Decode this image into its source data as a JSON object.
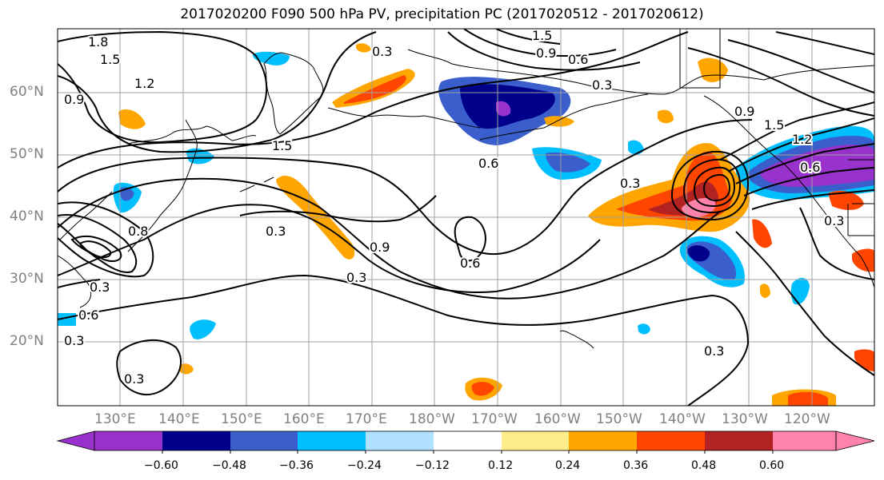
{
  "title": "2017020200 F090 500 hPa PV, precipitation PC (2017020512 - 2017020612)",
  "lat_labels": [
    "60°N",
    "50°N",
    "40°N",
    "30°N",
    "20°N"
  ],
  "lon_labels": [
    "130°E",
    "140°E",
    "150°E",
    "160°E",
    "170°E",
    "180°W",
    "170°W",
    "160°W",
    "150°W",
    "140°W",
    "130°W",
    "120°W"
  ],
  "contour_labels": [
    "1.8",
    "1.5",
    "1.2",
    "0.9",
    "0.3",
    "1.5",
    "0.9",
    "0.6",
    "0.3",
    "0.9",
    "1.5",
    "1.2",
    "0.6",
    "0.6",
    "1.5",
    "0.3",
    "0.3",
    "0.3",
    "0.9",
    "0.6",
    "0.3",
    "0.3",
    "0.8",
    "0.3",
    "0.6",
    "0.3",
    "0.3"
  ],
  "colorbar": {
    "tick_labels": [
      "−0.60",
      "−0.48",
      "−0.36",
      "−0.24",
      "−0.12",
      "0.12",
      "0.24",
      "0.36",
      "0.48",
      "0.60"
    ],
    "colors": [
      "#9932cc",
      "#00008b",
      "#3a5fcd",
      "#00bfff",
      "#b0e2ff",
      "#ffffff",
      "#ffec8b",
      "#ffa500",
      "#ff4500",
      "#b22222",
      "#ff82ab"
    ]
  }
}
